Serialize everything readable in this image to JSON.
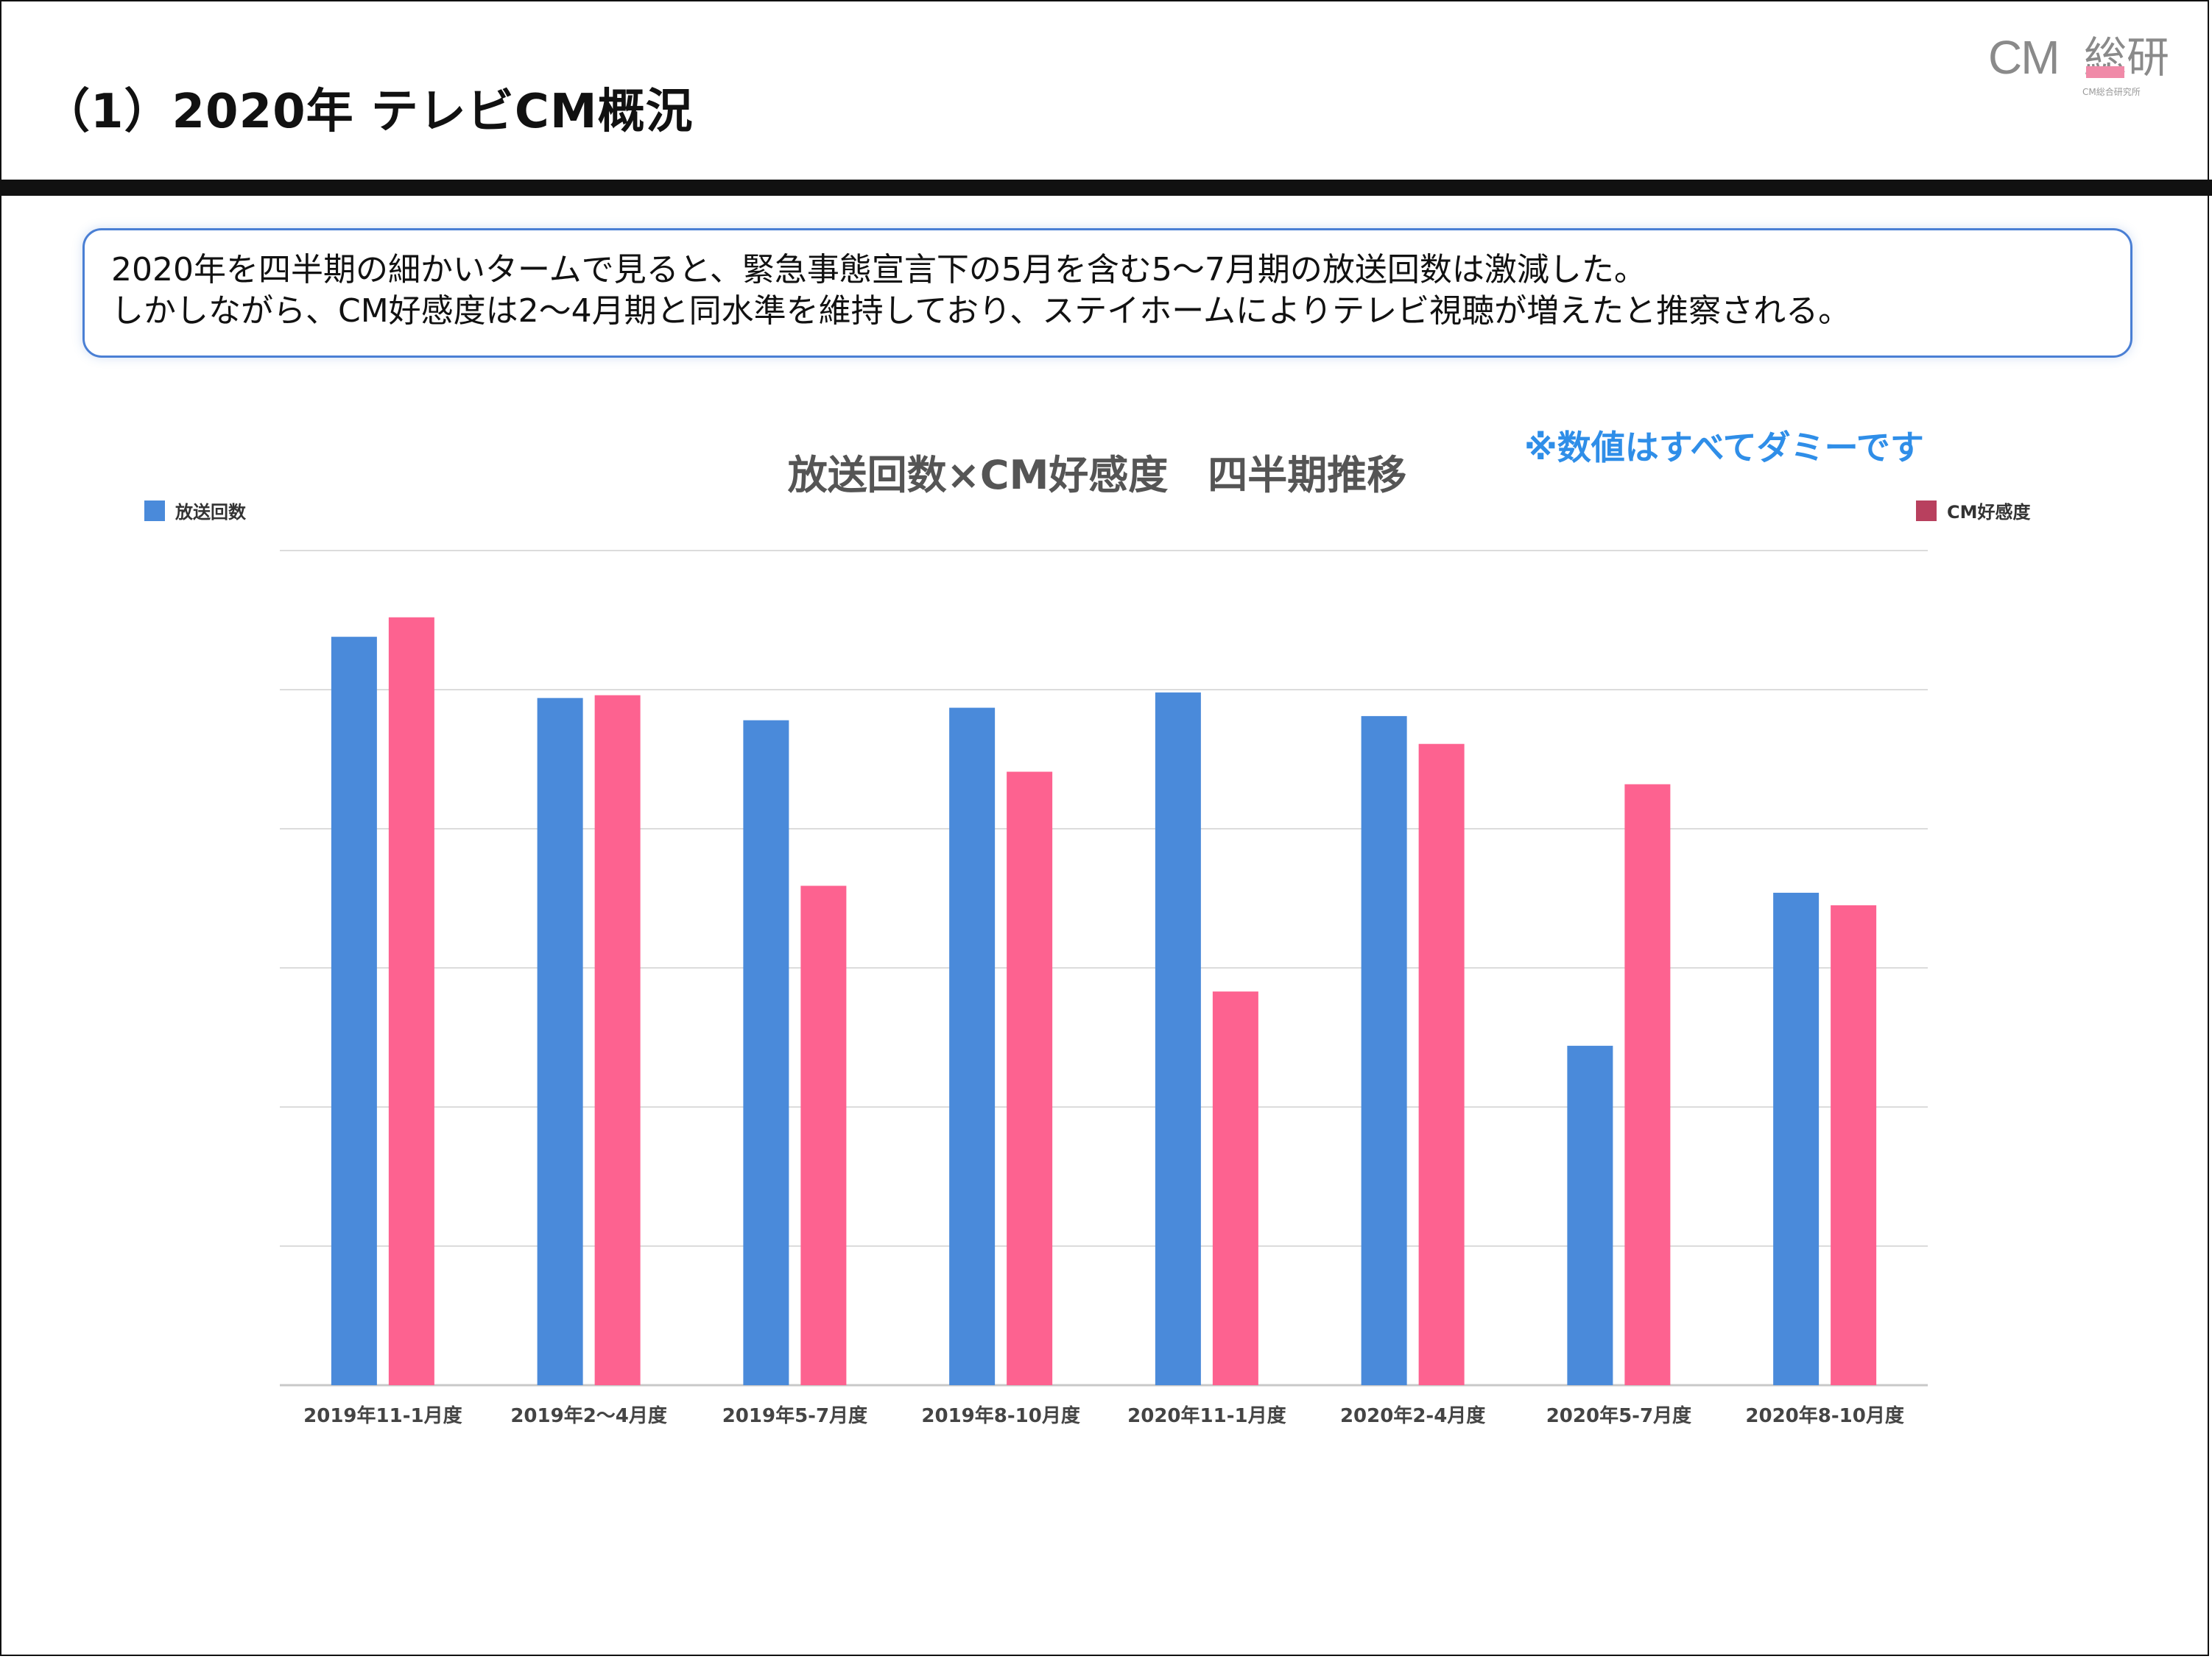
{
  "header": {
    "title": "（1）2020年 テレビCM概況",
    "logo": {
      "main": "CM",
      "kanji": "総研",
      "sub": "CM総合研究所"
    }
  },
  "summary": {
    "line1": "2020年を四半期の細かいタームで見ると、緊急事態宣言下の5月を含む5〜7月期の放送回数は激減した。",
    "line2": "しかしながら、CM好感度は2〜4月期と同水準を維持しており、ステイホームによりテレビ視聴が増えたと推察される。"
  },
  "note": "※数値はすべてダミーです",
  "colors": {
    "series1": "#4a8ada",
    "series2": "#fd6290",
    "legend2": "#b8405e",
    "grid": "#dcdcdc",
    "accent": "#4a7fd4"
  },
  "chart_data": {
    "type": "bar",
    "title": "放送回数×CM好感度　四半期推移",
    "categories": [
      "2019年11-1月度",
      "2019年2〜4月度",
      "2019年5-7月度",
      "2019年8-10月度",
      "2020年11-1月度",
      "2020年2-4月度",
      "2020年5-7月度",
      "2020年8-10月度"
    ],
    "series": [
      {
        "name": "放送回数",
        "axis": "left",
        "values": [
          5.38,
          4.94,
          4.78,
          4.87,
          4.98,
          4.81,
          2.44,
          3.54
        ]
      },
      {
        "name": "CM好感度",
        "axis": "right",
        "values": [
          5.52,
          4.96,
          3.59,
          4.41,
          2.83,
          4.61,
          4.32,
          3.45
        ]
      }
    ],
    "ylim": [
      0,
      6
    ],
    "gridlines": 6,
    "grid": true,
    "legend": [
      "top-left",
      "top-right"
    ],
    "ylabel": "",
    "xlabel": ""
  }
}
